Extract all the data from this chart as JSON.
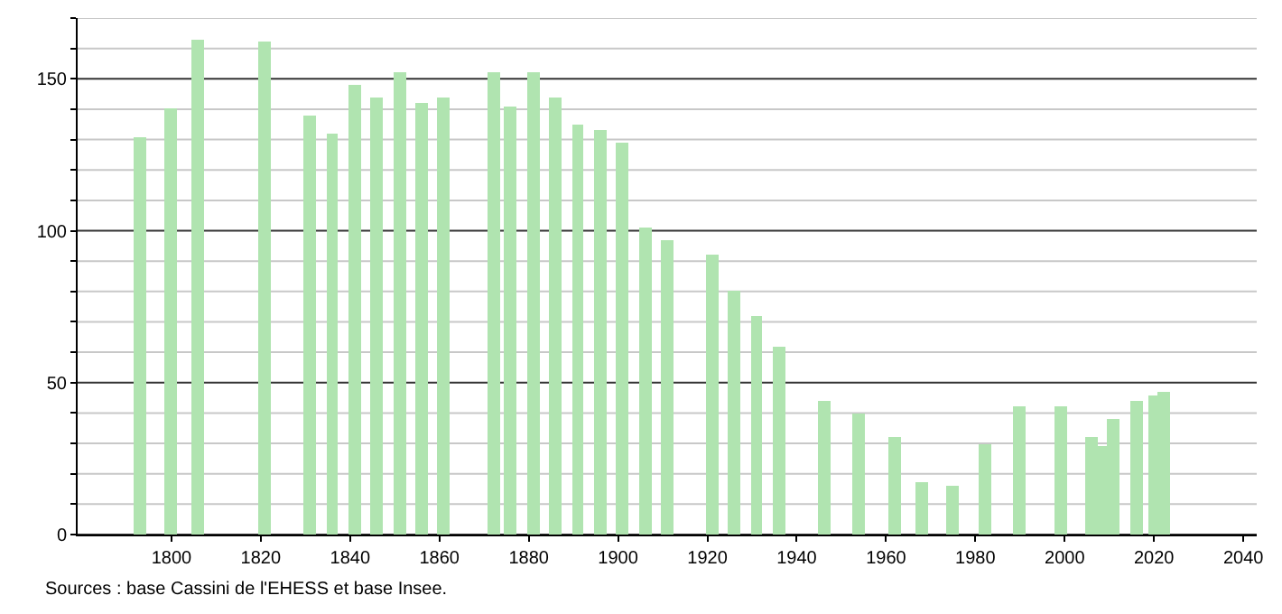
{
  "chart_data": {
    "type": "bar",
    "x": [
      1793,
      1800,
      1806,
      1821,
      1831,
      1836,
      1841,
      1846,
      1851,
      1856,
      1861,
      1872,
      1876,
      1881,
      1886,
      1891,
      1896,
      1901,
      1906,
      1911,
      1921,
      1926,
      1931,
      1936,
      1946,
      1954,
      1962,
      1968,
      1975,
      1982,
      1990,
      1999,
      2006,
      2008,
      2011,
      2016,
      2020,
      2022
    ],
    "values": [
      131,
      140,
      163,
      162,
      138,
      132,
      148,
      144,
      152,
      142,
      144,
      152,
      141,
      152,
      144,
      135,
      133,
      129,
      101,
      97,
      92,
      80,
      72,
      62,
      44,
      40,
      32,
      17,
      16,
      30,
      42,
      42,
      32,
      29,
      38,
      44,
      46,
      47
    ],
    "color": "#b0e4b0",
    "xlim": [
      1779,
      2043
    ],
    "xticks": [
      1800,
      1820,
      1840,
      1860,
      1880,
      1900,
      1920,
      1940,
      1960,
      1980,
      2000,
      2020,
      2040
    ],
    "ylim": [
      0,
      170
    ],
    "yticks": [
      0,
      {
        "value": 10,
        "label": null
      },
      {
        "value": 20,
        "label": null
      },
      {
        "value": 30,
        "label": null
      },
      {
        "value": 40,
        "label": null
      },
      50,
      {
        "value": 60,
        "label": null
      },
      {
        "value": 70,
        "label": null
      },
      {
        "value": 80,
        "label": null
      },
      {
        "value": 90,
        "label": null
      },
      100,
      {
        "value": 110,
        "label": null
      },
      {
        "value": 120,
        "label": null
      },
      {
        "value": 130,
        "label": null
      },
      {
        "value": 140,
        "label": null
      },
      150,
      {
        "value": 160,
        "label": null
      },
      {
        "value": 170,
        "label": null
      }
    ],
    "grid": "y",
    "annotations": [
      "Sources : base Cassini de l'EHESS et base Insee."
    ]
  }
}
